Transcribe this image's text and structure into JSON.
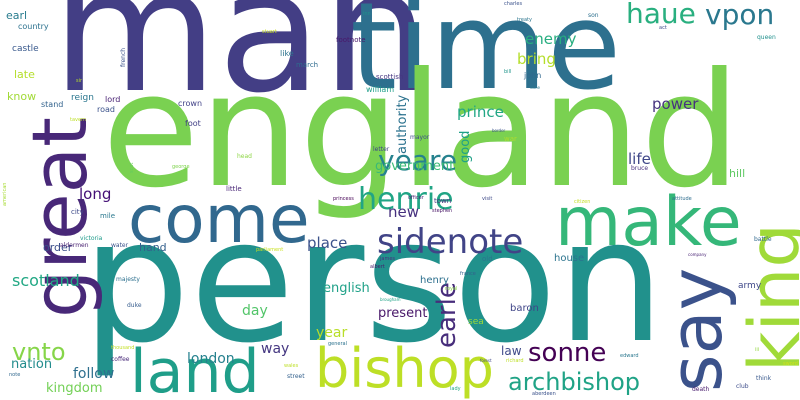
{
  "words": [
    {
      "text": "man",
      "color": "#433e85"
    },
    {
      "text": "time",
      "color": "#2d708e"
    },
    {
      "text": "england",
      "color": "#7ad151"
    },
    {
      "text": "person",
      "color": "#21918c"
    },
    {
      "text": "great",
      "color": "#482878"
    },
    {
      "text": "come",
      "color": "#31688e"
    },
    {
      "text": "make",
      "color": "#35b779"
    },
    {
      "text": "say",
      "color": "#3b528b"
    },
    {
      "text": "king",
      "color": "#a0da39"
    },
    {
      "text": "land",
      "color": "#1f9e89"
    },
    {
      "text": "bishop",
      "color": "#bddf26"
    },
    {
      "text": "sidenote",
      "color": "#414487"
    },
    {
      "text": "henrie",
      "color": "#21a585"
    },
    {
      "text": "yeare",
      "color": "#26828e"
    },
    {
      "text": "haue",
      "color": "#29af7f"
    },
    {
      "text": "vpon",
      "color": "#2a788e"
    },
    {
      "text": "archbishop",
      "color": "#20a386"
    },
    {
      "text": "sonne",
      "color": "#440154"
    },
    {
      "text": "earle",
      "color": "#472d7b"
    },
    {
      "text": "vnto",
      "color": "#86d549"
    },
    {
      "text": "scotland",
      "color": "#22a884"
    },
    {
      "text": "enemy",
      "color": "#28ae80"
    },
    {
      "text": "bring",
      "color": "#b5de2b"
    },
    {
      "text": "prince",
      "color": "#22a785"
    },
    {
      "text": "power",
      "color": "#46337e"
    },
    {
      "text": "authority",
      "color": "#2c728e"
    },
    {
      "text": "government",
      "color": "#3aba76"
    },
    {
      "text": "good",
      "color": "#1fa187"
    },
    {
      "text": "life",
      "color": "#3f4788"
    },
    {
      "text": "long",
      "color": "#440f76"
    },
    {
      "text": "new",
      "color": "#46307e"
    },
    {
      "text": "place",
      "color": "#3b528b"
    },
    {
      "text": "english",
      "color": "#1fa188"
    },
    {
      "text": "present",
      "color": "#481769"
    },
    {
      "text": "day",
      "color": "#52c569"
    },
    {
      "text": "year",
      "color": "#b8de29"
    },
    {
      "text": "way",
      "color": "#453781"
    },
    {
      "text": "london",
      "color": "#26818e"
    },
    {
      "text": "follow",
      "color": "#2e6f8e"
    },
    {
      "text": "nation",
      "color": "#228c8d"
    },
    {
      "text": "kingdom",
      "color": "#73d056"
    },
    {
      "text": "law",
      "color": "#3e4989"
    },
    {
      "text": "hill",
      "color": "#5ec962"
    },
    {
      "text": "hand",
      "color": "#34608d"
    },
    {
      "text": "order",
      "color": "#3c4f8a"
    },
    {
      "text": "house",
      "color": "#2b748e"
    },
    {
      "text": "army",
      "color": "#3f4889"
    },
    {
      "text": "henry",
      "color": "#2d708e"
    },
    {
      "text": "baron",
      "color": "#404688"
    },
    {
      "text": "sea",
      "color": "#9bd93c"
    },
    {
      "text": "late",
      "color": "#b5de2b"
    },
    {
      "text": "know",
      "color": "#a2da37"
    },
    {
      "text": "earl",
      "color": "#287c8e"
    },
    {
      "text": "castle",
      "color": "#38588c"
    },
    {
      "text": "country",
      "color": "#2c718e"
    },
    {
      "text": "reign",
      "color": "#2a768e"
    },
    {
      "text": "stand",
      "color": "#33638d"
    },
    {
      "text": "lord",
      "color": "#482173"
    },
    {
      "text": "road",
      "color": "#3b528b"
    },
    {
      "text": "crown",
      "color": "#414287"
    },
    {
      "text": "foot",
      "color": "#424086"
    },
    {
      "text": "william",
      "color": "#1f9e89"
    },
    {
      "text": "scottish",
      "color": "#453581"
    },
    {
      "text": "john",
      "color": "#31688e"
    },
    {
      "text": "like",
      "color": "#2c728e"
    },
    {
      "text": "march",
      "color": "#2f6b8e"
    },
    {
      "text": "footnote",
      "color": "#48186a"
    },
    {
      "text": "town",
      "color": "#46327e"
    },
    {
      "text": "old",
      "color": "#2b748e"
    },
    {
      "text": "war",
      "color": "#addc30"
    },
    {
      "text": "little",
      "color": "#482576"
    },
    {
      "text": "mile",
      "color": "#2a788e"
    },
    {
      "text": "city",
      "color": "#3e4a89"
    },
    {
      "text": "water",
      "color": "#3b528b"
    },
    {
      "text": "aldermen",
      "color": "#481f70"
    },
    {
      "text": "victoria",
      "color": "#1e9b8a"
    },
    {
      "text": "majesty",
      "color": "#2d708e"
    },
    {
      "text": "duke",
      "color": "#365c8d"
    },
    {
      "text": "coffee",
      "color": "#482979"
    },
    {
      "text": "street",
      "color": "#34618d"
    },
    {
      "text": "death",
      "color": "#481b6d"
    },
    {
      "text": "club",
      "color": "#3d4d8a"
    },
    {
      "text": "think",
      "color": "#38588c"
    },
    {
      "text": "queen",
      "color": "#21908d"
    },
    {
      "text": "battle",
      "color": "#31688e"
    },
    {
      "text": "bruce",
      "color": "#472f7d"
    },
    {
      "text": "head",
      "color": "#8ed645"
    },
    {
      "text": "letter",
      "color": "#404588"
    },
    {
      "text": "mayor",
      "color": "#3d4d8a"
    },
    {
      "text": "albert",
      "color": "#481a6c"
    },
    {
      "text": "france",
      "color": "#33638d"
    },
    {
      "text": "royal",
      "color": "#8bd646"
    },
    {
      "text": "stephen",
      "color": "#471365"
    },
    {
      "text": "princess",
      "color": "#440154"
    },
    {
      "text": "general",
      "color": "#2c728e"
    },
    {
      "text": "edward",
      "color": "#2a778e"
    },
    {
      "text": "richard",
      "color": "#bddf26"
    },
    {
      "text": "tavern",
      "color": "#bddf26"
    },
    {
      "text": "french",
      "color": "#3b528b"
    },
    {
      "text": "sir",
      "color": "#b8de29"
    },
    {
      "text": "son",
      "color": "#2d708e"
    },
    {
      "text": "charles",
      "color": "#3b528b"
    },
    {
      "text": "treaty",
      "color": "#2b758e"
    },
    {
      "text": "act",
      "color": "#3e4c8a"
    },
    {
      "text": "citizen",
      "color": "#c2df23"
    },
    {
      "text": "visit",
      "color": "#3e4989"
    },
    {
      "text": "officer",
      "color": "#481d6f"
    },
    {
      "text": "scot",
      "color": "#65cb5e"
    },
    {
      "text": "george",
      "color": "#7fd34e"
    },
    {
      "text": "stuart",
      "color": "#c8e020"
    },
    {
      "text": "bill",
      "color": "#1f958b"
    },
    {
      "text": "inn",
      "color": "#21918c"
    },
    {
      "text": "parliament",
      "color": "#c8e020"
    },
    {
      "text": "wales",
      "color": "#bddf26"
    },
    {
      "text": "lady",
      "color": "#22a884"
    },
    {
      "text": "aberdeen",
      "color": "#3b528b"
    },
    {
      "text": "attitude",
      "color": "#2e6d8e"
    },
    {
      "text": "company",
      "color": "#482374"
    },
    {
      "text": "thousand",
      "color": "#c2df23"
    },
    {
      "text": "american",
      "color": "#a8db34"
    },
    {
      "text": "note",
      "color": "#31688e"
    },
    {
      "text": "border",
      "color": "#3b528b"
    },
    {
      "text": "iii",
      "color": "#93d741"
    },
    {
      "text": "dane",
      "color": "#2a778e"
    },
    {
      "text": "forest",
      "color": "#3f4788"
    },
    {
      "text": "brougham",
      "color": "#20a386"
    },
    {
      "text": "james",
      "color": "#46307e"
    },
    {
      "text": "sword",
      "color": "#d0e11c"
    }
  ]
}
